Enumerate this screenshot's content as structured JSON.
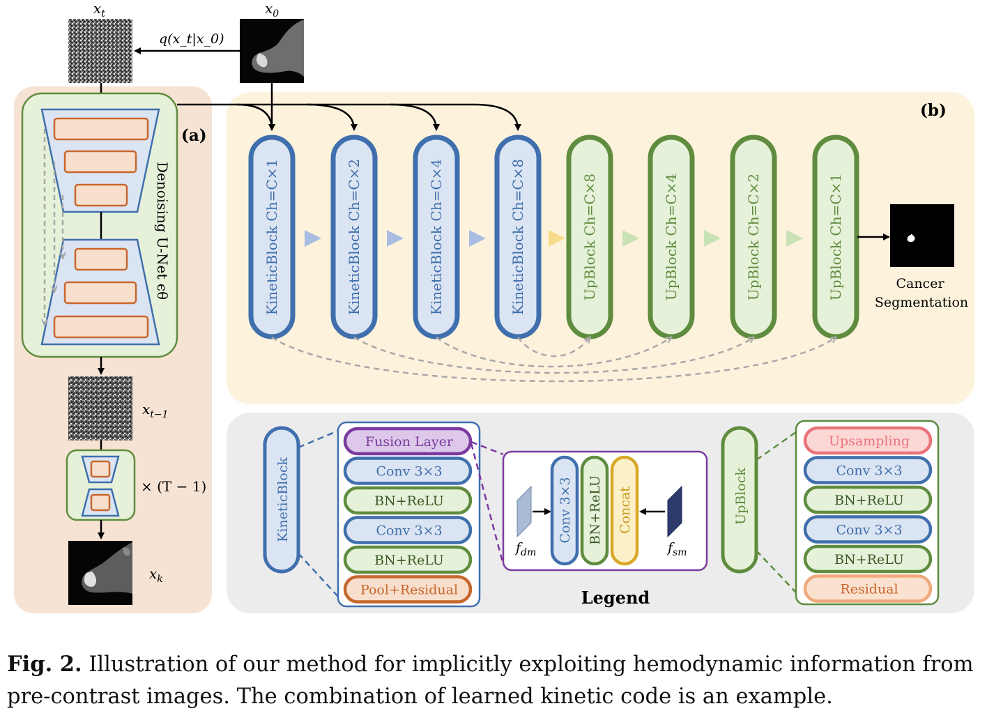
{
  "labels": {
    "xt": "x",
    "xt_sub": "t",
    "x0": "x",
    "x0_sub": "0",
    "q_label": "q(x_t|x_0)",
    "panel_a": "(a)",
    "panel_b": "(b)",
    "unet": "Denoising U-Net ϵθ",
    "xt1": "x",
    "xt1_sub": "t−1",
    "xk": "x",
    "xk_sub": "k",
    "repeat": "× (T − 1)",
    "cancer1": "Cancer",
    "cancer2": "Segmentation",
    "legend": "Legend",
    "fdm": "f",
    "fdm_sub": "dm",
    "fsm": "f",
    "fsm_sub": "sm"
  },
  "blocks": [
    {
      "label": "KineticBlock Ch=C×1",
      "kind": "kinetic"
    },
    {
      "label": "KineticBlock Ch=C×2",
      "kind": "kinetic"
    },
    {
      "label": "KineticBlock Ch=C×4",
      "kind": "kinetic"
    },
    {
      "label": "KineticBlock Ch=C×8",
      "kind": "kinetic"
    },
    {
      "label": "UpBlock Ch=C×8",
      "kind": "up"
    },
    {
      "label": "UpBlock Ch=C×4",
      "kind": "up"
    },
    {
      "label": "UpBlock Ch=C×2",
      "kind": "up"
    },
    {
      "label": "UpBlock Ch=C×1",
      "kind": "up"
    }
  ],
  "legend": {
    "kinetic_block": "KineticBlock",
    "kinetic_layers": [
      "Fusion Layer",
      "Conv 3×3",
      "BN+ReLU",
      "Conv 3×3",
      "BN+ReLU",
      "Pool+Residual"
    ],
    "fusion_layers": [
      "Conv 3×3",
      "BN+ReLU",
      "Concat"
    ],
    "up_block": "UpBlock",
    "up_layers": [
      "Upsampling",
      "Conv 3×3",
      "BN+ReLU",
      "Conv 3×3",
      "BN+ReLU",
      "Residual"
    ]
  },
  "caption": {
    "prefix": "Fig. 2.",
    "text": " Illustration of our method for implicitly exploiting hemodynamic information from pre-contrast images. The combination of learned kinetic code is an example."
  },
  "colors": {
    "panel_a_bg": "#f6e3d4",
    "panel_b_bg": "#fdf2dc",
    "legend_bg": "#ececec",
    "blue_dark": "#3f6fad",
    "blue_fill": "#dbe4f2",
    "green_dark": "#5f8c3e",
    "green_fill": "#e6f1d9",
    "orange": "#c7672e",
    "orange_fill": "#f8dfcd",
    "purple": "#7b3aa0",
    "purple_fill": "#ddc8ea",
    "pink": "#e9737a",
    "pink_fill": "#fbd7d5",
    "peach": "#f0a97c",
    "peach_fill": "#fbe1cf",
    "gold": "#d8a928",
    "gold_fill": "#fbf0c7",
    "gray_dash": "#a8a8a8"
  }
}
